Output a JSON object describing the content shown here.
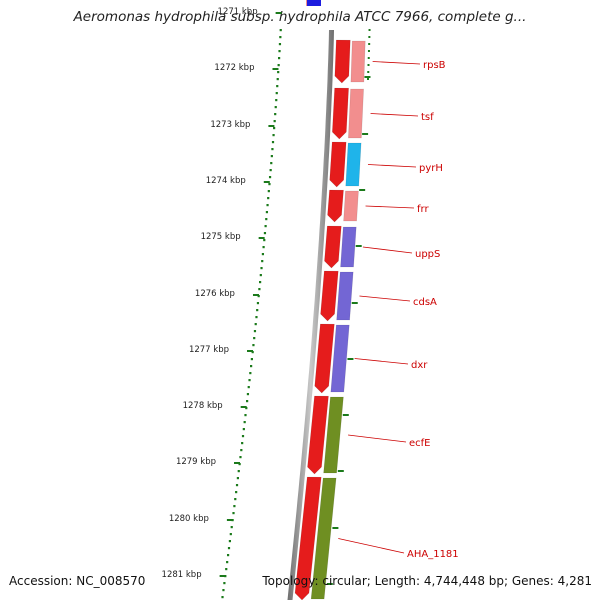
{
  "title": "Aeromonas hydrophila subsp. hydrophila ATCC 7966, complete g...",
  "footer": {
    "accession": "Accession: NC_008570",
    "topology": "Topology: circular; Length: 4,744,448 bp; Genes: 4,281"
  },
  "colors": {
    "cds_forward": "#e51c1c",
    "rrna_or_trna": "#f28e8e",
    "blue_feature": "#1fb4ea",
    "purple_feature": "#7366d4",
    "olive_feature": "#6f8f22",
    "axis_dots": "#1b7a1b",
    "label_text": "#cc0000"
  },
  "ticks": [
    {
      "label": "1271 kbp"
    },
    {
      "label": "1272 kbp"
    },
    {
      "label": "1273 kbp"
    },
    {
      "label": "1274 kbp"
    },
    {
      "label": "1275 kbp"
    },
    {
      "label": "1276 kbp"
    },
    {
      "label": "1277 kbp"
    },
    {
      "label": "1278 kbp"
    },
    {
      "label": "1279 kbp"
    },
    {
      "label": "1280 kbp"
    },
    {
      "label": "1281 kbp"
    }
  ],
  "genes": [
    {
      "name": "rpsB",
      "category": "rrna_or_trna"
    },
    {
      "name": "tsf",
      "category": "rrna_or_trna"
    },
    {
      "name": "pyrH",
      "category": "blue_feature"
    },
    {
      "name": "frr",
      "category": "rrna_or_trna"
    },
    {
      "name": "uppS",
      "category": "purple_feature"
    },
    {
      "name": "cdsA",
      "category": "purple_feature"
    },
    {
      "name": "dxr",
      "category": "purple_feature"
    },
    {
      "name": "ecfE",
      "category": "olive_feature"
    },
    {
      "name": "AHA_1181",
      "category": "olive_feature"
    }
  ]
}
